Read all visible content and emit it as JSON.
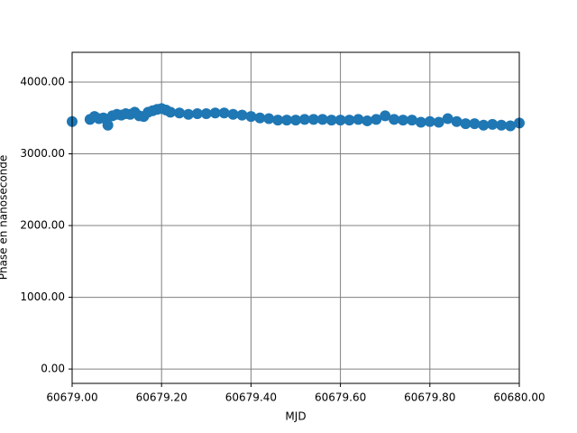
{
  "chart_data": {
    "type": "scatter",
    "xlabel": "MJD",
    "ylabel": "Phase en nanoseconde",
    "x": [
      60679.0,
      60679.04,
      60679.05,
      60679.06,
      60679.07,
      60679.08,
      60679.09,
      60679.1,
      60679.11,
      60679.12,
      60679.13,
      60679.14,
      60679.15,
      60679.16,
      60679.17,
      60679.18,
      60679.19,
      60679.2,
      60679.21,
      60679.22,
      60679.24,
      60679.26,
      60679.28,
      60679.3,
      60679.32,
      60679.34,
      60679.36,
      60679.38,
      60679.4,
      60679.42,
      60679.44,
      60679.46,
      60679.48,
      60679.5,
      60679.52,
      60679.54,
      60679.56,
      60679.58,
      60679.6,
      60679.62,
      60679.64,
      60679.66,
      60679.68,
      60679.7,
      60679.72,
      60679.74,
      60679.76,
      60679.78,
      60679.8,
      60679.82,
      60679.84,
      60679.86,
      60679.88,
      60679.9,
      60679.92,
      60679.94,
      60679.96,
      60679.98,
      60680.0
    ],
    "series": [
      {
        "color": "#1f77b4",
        "values": [
          3450,
          3480,
          3520,
          3490,
          3500,
          3400,
          3530,
          3550,
          3540,
          3560,
          3550,
          3580,
          3530,
          3520,
          3580,
          3600,
          3620,
          3630,
          3610,
          3580,
          3570,
          3550,
          3560,
          3560,
          3570,
          3570,
          3550,
          3540,
          3520,
          3500,
          3490,
          3470,
          3470,
          3470,
          3480,
          3480,
          3480,
          3470,
          3470,
          3470,
          3480,
          3460,
          3480,
          3530,
          3480,
          3470,
          3470,
          3440,
          3450,
          3440,
          3490,
          3450,
          3420,
          3420,
          3400,
          3410,
          3400,
          3390,
          3430
        ]
      }
    ],
    "xlim": [
      60679.0,
      60680.0
    ],
    "xticks": [
      {
        "value": 60679.0,
        "label": "60679.00"
      },
      {
        "value": 60679.2,
        "label": "60679.20"
      },
      {
        "value": 60679.4,
        "label": "60679.40"
      },
      {
        "value": 60679.6,
        "label": "60679.60"
      },
      {
        "value": 60679.8,
        "label": "60679.80"
      },
      {
        "value": 60680.0,
        "label": "60680.00"
      }
    ],
    "ylim": [
      -200,
      4415
    ],
    "yticks": [
      {
        "value": 0,
        "label": "0.00"
      },
      {
        "value": 1000,
        "label": "1000.00"
      },
      {
        "value": 2000,
        "label": "2000.00"
      },
      {
        "value": 3000,
        "label": "3000.00"
      },
      {
        "value": 4000,
        "label": "4000.00"
      }
    ],
    "grid": true
  }
}
